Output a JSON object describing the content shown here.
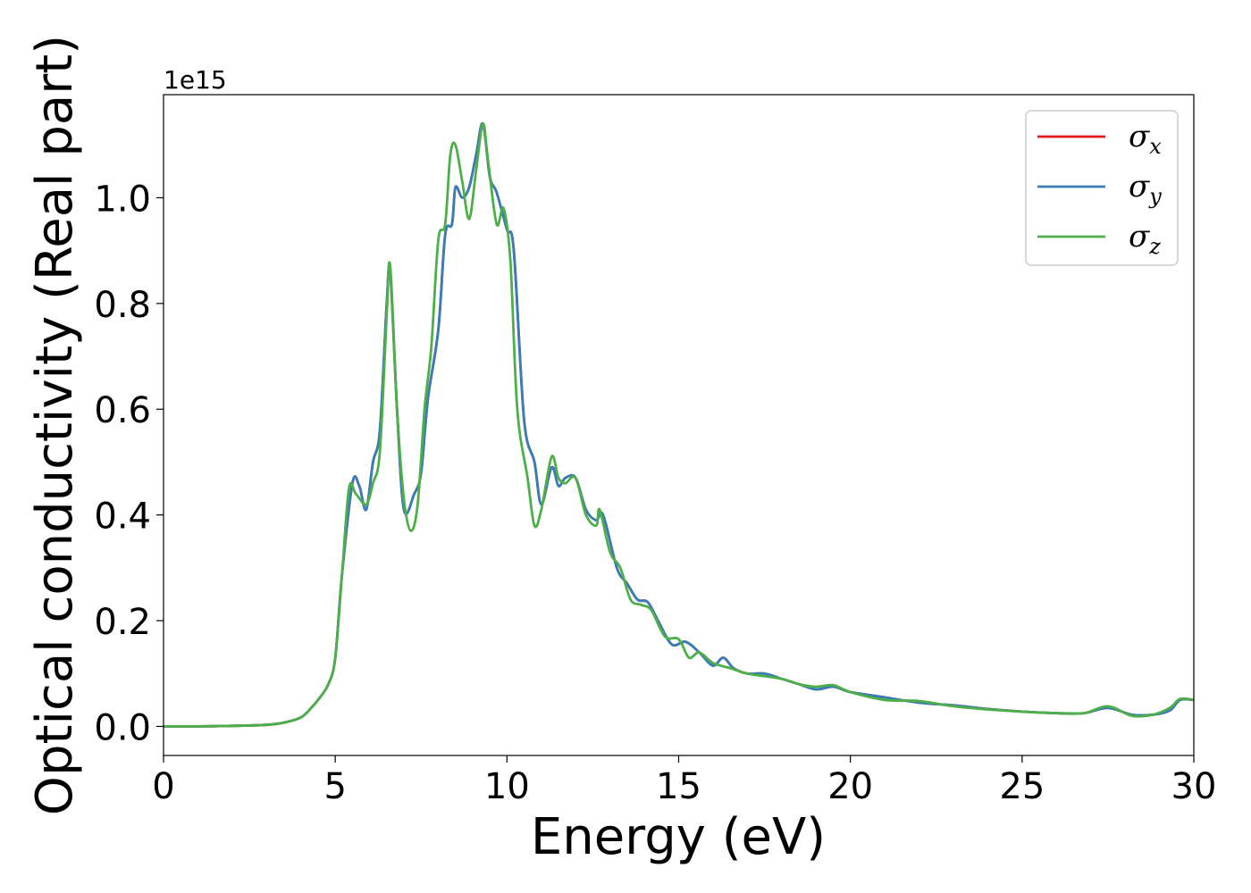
{
  "chart_data": {
    "type": "line",
    "xlabel": "Energy (eV)",
    "ylabel": "Optical conductivity (Real part)",
    "y_offset_label": "1e15",
    "xlim": [
      0,
      30
    ],
    "ylim": [
      -0.055,
      1.195
    ],
    "x_ticks": [
      0,
      5,
      10,
      15,
      20,
      25,
      30
    ],
    "y_ticks": [
      0.0,
      0.2,
      0.4,
      0.6,
      0.8,
      1.0
    ],
    "x_tick_labels": [
      "0",
      "5",
      "10",
      "15",
      "20",
      "25",
      "30"
    ],
    "y_tick_labels": [
      "0.0",
      "0.2",
      "0.4",
      "0.6",
      "0.8",
      "1.0"
    ],
    "grid": false,
    "legend": {
      "position": "top-right",
      "entries": [
        {
          "symbol": "σ",
          "sub": "x",
          "color": "#e41a1c"
        },
        {
          "symbol": "σ",
          "sub": "y",
          "color": "#377eb8"
        },
        {
          "symbol": "σ",
          "sub": "z",
          "color": "#4daf4a"
        }
      ]
    },
    "series": [
      {
        "color": "#e41a1c",
        "x": [
          0,
          1,
          2,
          3,
          3.5,
          4.0,
          4.3,
          4.5,
          4.8,
          5.0,
          5.2,
          5.5,
          5.7,
          5.9,
          6.1,
          6.3,
          6.5,
          6.6,
          6.8,
          7.0,
          7.3,
          7.5,
          7.7,
          8.0,
          8.2,
          8.4,
          8.5,
          8.7,
          8.9,
          9.1,
          9.3,
          9.5,
          9.7,
          10.0,
          10.2,
          10.5,
          10.8,
          11.0,
          11.3,
          11.5,
          11.7,
          12.0,
          12.3,
          12.6,
          12.8,
          13.2,
          13.5,
          13.8,
          14.1,
          14.4,
          14.8,
          15.2,
          15.6,
          16.0,
          16.3,
          16.6,
          17.0,
          17.5,
          18.0,
          18.5,
          19.0,
          19.5,
          20.0,
          21.0,
          22.0,
          23.0,
          24.0,
          25.0,
          26.0,
          26.8,
          27.5,
          28.2,
          28.8,
          29.3,
          29.6,
          30.0
        ],
        "y": [
          0.0,
          0.0,
          0.001,
          0.003,
          0.007,
          0.017,
          0.035,
          0.05,
          0.08,
          0.13,
          0.29,
          0.46,
          0.455,
          0.41,
          0.5,
          0.56,
          0.8,
          0.86,
          0.6,
          0.41,
          0.44,
          0.48,
          0.62,
          0.75,
          0.93,
          0.95,
          1.02,
          1.0,
          1.02,
          1.08,
          1.14,
          1.04,
          1.01,
          0.94,
          0.9,
          0.58,
          0.5,
          0.42,
          0.49,
          0.455,
          0.47,
          0.47,
          0.41,
          0.39,
          0.4,
          0.3,
          0.27,
          0.24,
          0.235,
          0.2,
          0.155,
          0.16,
          0.14,
          0.115,
          0.13,
          0.11,
          0.1,
          0.1,
          0.09,
          0.08,
          0.07,
          0.075,
          0.065,
          0.055,
          0.045,
          0.04,
          0.033,
          0.028,
          0.025,
          0.025,
          0.035,
          0.022,
          0.022,
          0.03,
          0.05,
          0.05
        ]
      },
      {
        "color": "#377eb8",
        "x": [
          0,
          1,
          2,
          3,
          3.5,
          4.0,
          4.3,
          4.5,
          4.8,
          5.0,
          5.2,
          5.5,
          5.7,
          5.9,
          6.1,
          6.3,
          6.5,
          6.6,
          6.8,
          7.0,
          7.3,
          7.5,
          7.7,
          8.0,
          8.2,
          8.4,
          8.5,
          8.7,
          8.9,
          9.1,
          9.3,
          9.5,
          9.7,
          10.0,
          10.2,
          10.5,
          10.8,
          11.0,
          11.3,
          11.5,
          11.7,
          12.0,
          12.3,
          12.6,
          12.8,
          13.2,
          13.5,
          13.8,
          14.1,
          14.4,
          14.8,
          15.2,
          15.6,
          16.0,
          16.3,
          16.6,
          17.0,
          17.5,
          18.0,
          18.5,
          19.0,
          19.5,
          20.0,
          21.0,
          22.0,
          23.0,
          24.0,
          25.0,
          26.0,
          26.8,
          27.5,
          28.2,
          28.8,
          29.3,
          29.6,
          30.0
        ],
        "y": [
          0.0,
          0.0,
          0.001,
          0.003,
          0.007,
          0.017,
          0.035,
          0.05,
          0.08,
          0.13,
          0.29,
          0.46,
          0.455,
          0.41,
          0.5,
          0.56,
          0.8,
          0.86,
          0.6,
          0.41,
          0.44,
          0.48,
          0.62,
          0.75,
          0.93,
          0.95,
          1.02,
          1.0,
          1.02,
          1.08,
          1.14,
          1.04,
          1.01,
          0.94,
          0.9,
          0.58,
          0.5,
          0.42,
          0.49,
          0.455,
          0.47,
          0.47,
          0.41,
          0.39,
          0.4,
          0.3,
          0.27,
          0.24,
          0.235,
          0.2,
          0.155,
          0.16,
          0.14,
          0.115,
          0.13,
          0.11,
          0.1,
          0.1,
          0.09,
          0.08,
          0.07,
          0.075,
          0.065,
          0.055,
          0.045,
          0.04,
          0.033,
          0.028,
          0.025,
          0.025,
          0.035,
          0.022,
          0.022,
          0.03,
          0.05,
          0.05
        ]
      },
      {
        "color": "#4daf4a",
        "x": [
          0,
          1,
          2,
          3,
          3.5,
          4.0,
          4.3,
          4.5,
          4.8,
          5.0,
          5.2,
          5.4,
          5.6,
          5.9,
          6.1,
          6.3,
          6.5,
          6.6,
          6.8,
          7.0,
          7.2,
          7.4,
          7.6,
          7.8,
          8.0,
          8.2,
          8.35,
          8.5,
          8.7,
          8.9,
          9.1,
          9.3,
          9.45,
          9.7,
          9.9,
          10.1,
          10.3,
          10.6,
          10.8,
          11.0,
          11.3,
          11.5,
          11.7,
          12.0,
          12.3,
          12.6,
          12.7,
          13.0,
          13.3,
          13.6,
          13.9,
          14.2,
          14.6,
          15.0,
          15.3,
          15.6,
          16.0,
          16.5,
          17.0,
          17.5,
          18.0,
          18.5,
          19.0,
          19.5,
          20.0,
          21.0,
          22.0,
          23.0,
          24.0,
          25.0,
          26.0,
          26.8,
          27.5,
          28.2,
          28.8,
          29.3,
          29.6,
          30.0
        ],
        "y": [
          0.0,
          0.0,
          0.001,
          0.003,
          0.007,
          0.017,
          0.035,
          0.05,
          0.08,
          0.13,
          0.29,
          0.45,
          0.44,
          0.42,
          0.46,
          0.52,
          0.78,
          0.87,
          0.6,
          0.43,
          0.37,
          0.42,
          0.6,
          0.72,
          0.92,
          0.95,
          1.08,
          1.1,
          1.03,
          0.96,
          1.05,
          1.14,
          1.07,
          0.95,
          0.98,
          0.88,
          0.6,
          0.47,
          0.38,
          0.41,
          0.51,
          0.47,
          0.46,
          0.47,
          0.4,
          0.38,
          0.41,
          0.33,
          0.3,
          0.24,
          0.23,
          0.22,
          0.17,
          0.165,
          0.13,
          0.14,
          0.12,
          0.11,
          0.1,
          0.095,
          0.09,
          0.08,
          0.075,
          0.078,
          0.065,
          0.05,
          0.048,
          0.038,
          0.032,
          0.028,
          0.025,
          0.025,
          0.038,
          0.02,
          0.022,
          0.035,
          0.052,
          0.05
        ]
      }
    ]
  }
}
